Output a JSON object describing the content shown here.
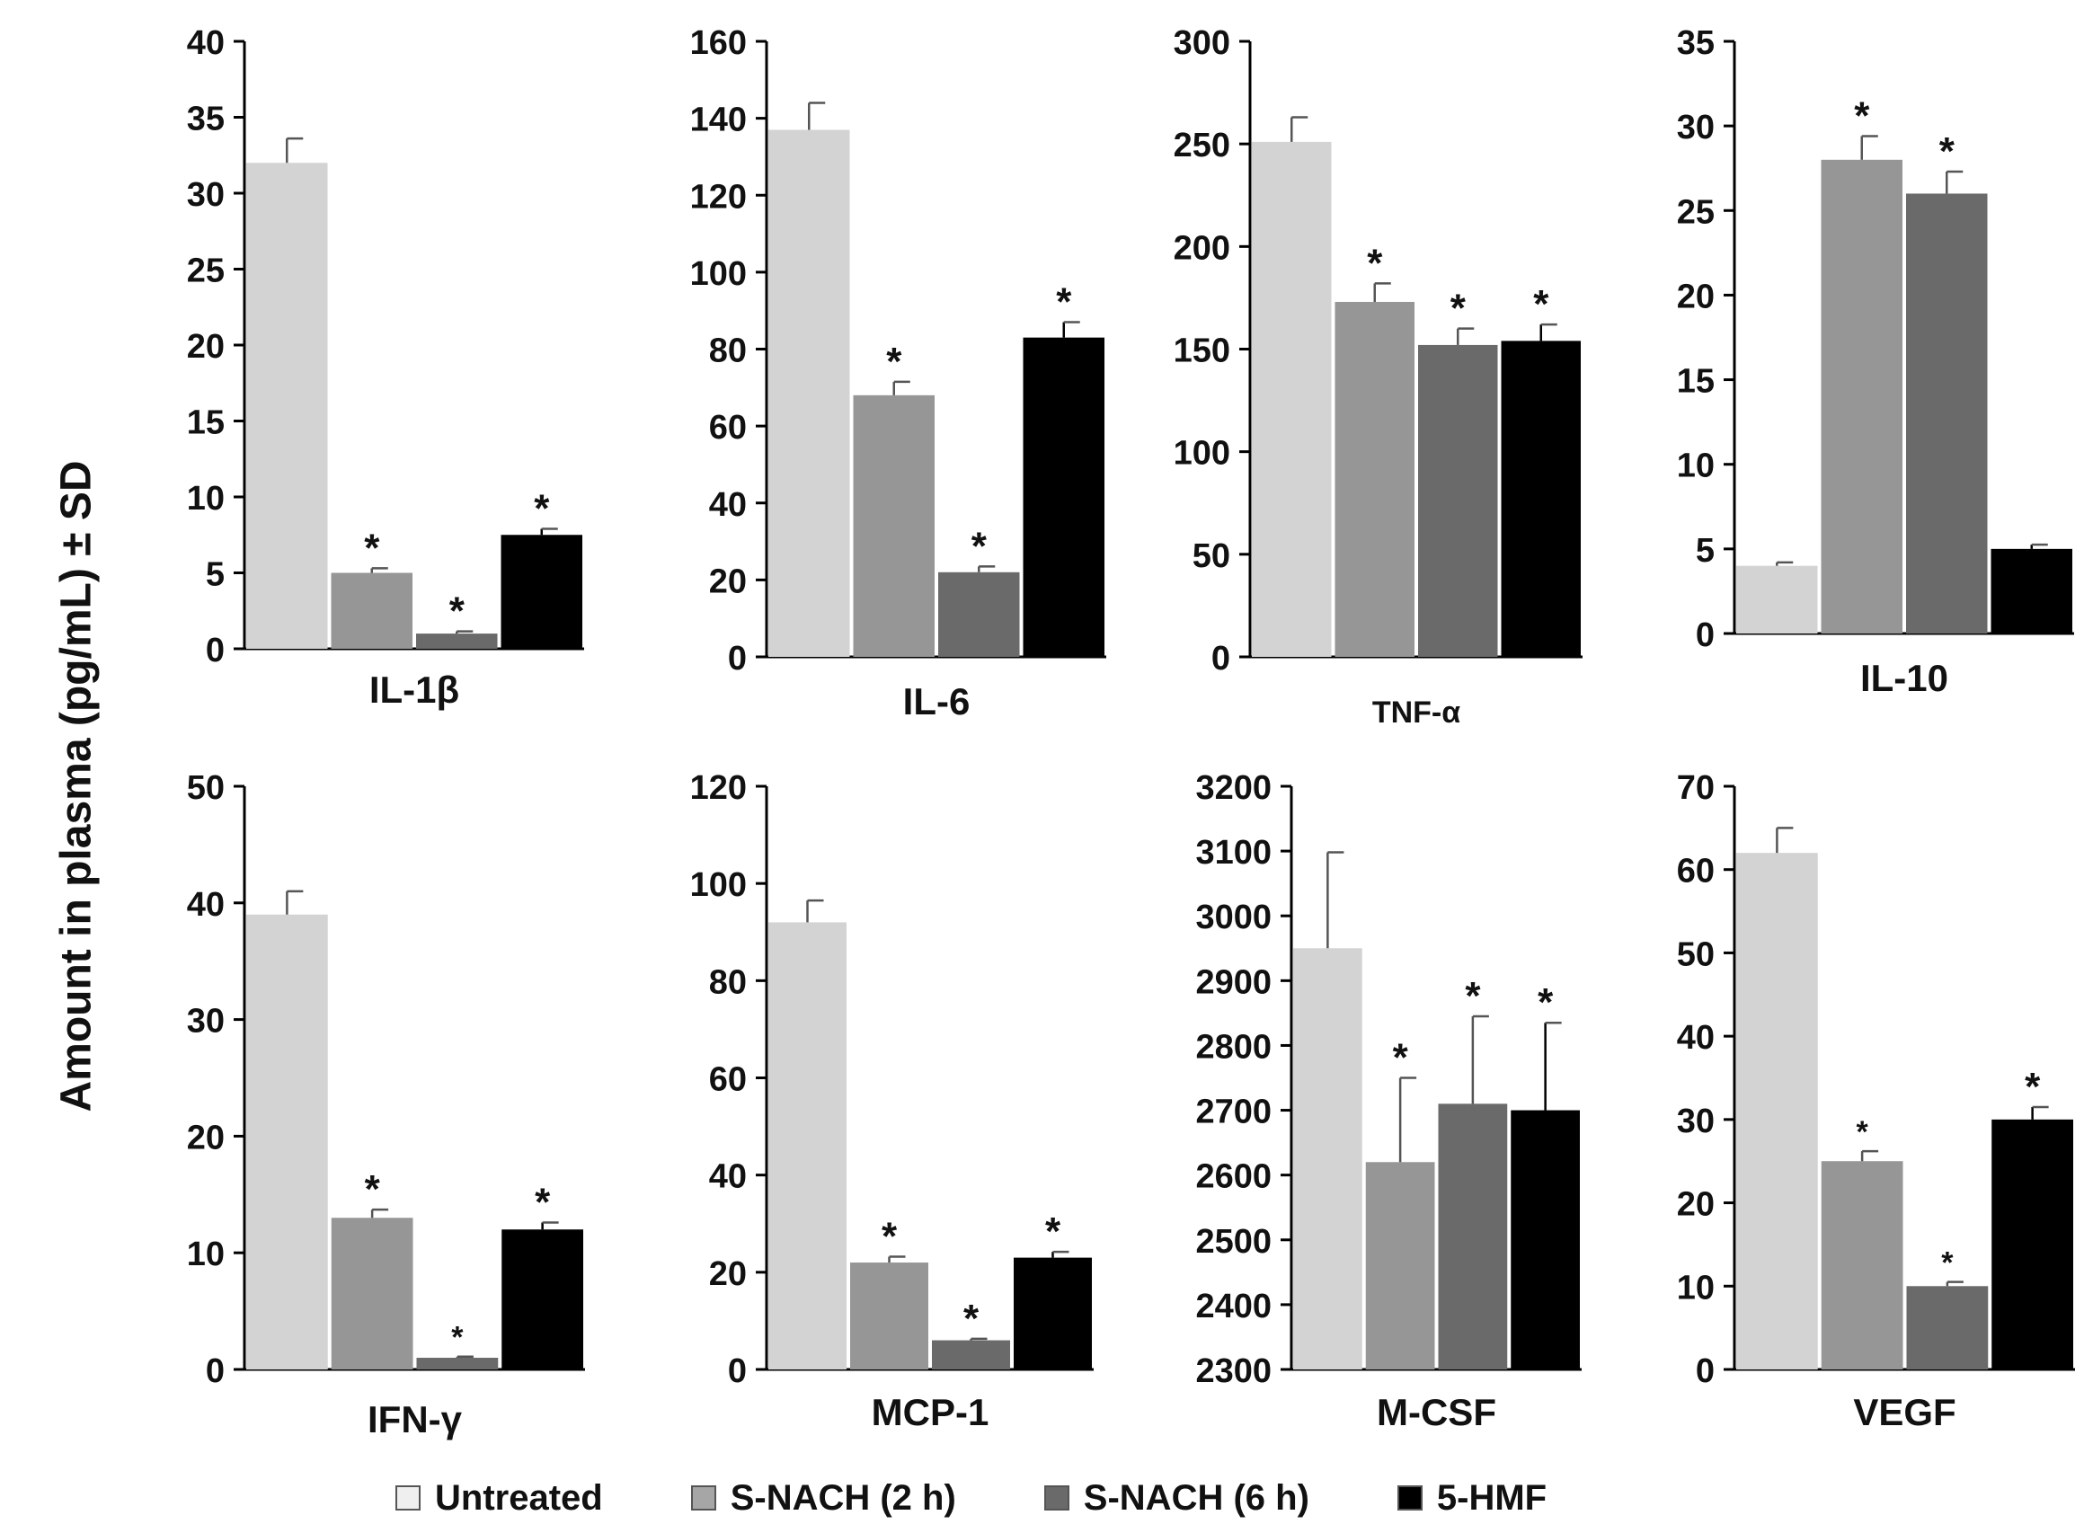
{
  "y_axis_title": "Amount in plasma (pg/mL) ± SD",
  "legend": [
    {
      "label": "Untreated",
      "color": "#d3d3d3"
    },
    {
      "label": "S-NACH (2 h)",
      "color": "#969696"
    },
    {
      "label": "S-NACH (6 h)",
      "color": "#6a6a6a"
    },
    {
      "label": "5-HMF",
      "color": "#000000"
    }
  ],
  "colors": {
    "untreated": "#d3d3d3",
    "snach2": "#969696",
    "snach6": "#6a6a6a",
    "hmf": "#000000"
  },
  "chart_data": [
    {
      "type": "bar",
      "title": "IL-1β",
      "ylim": [
        0,
        40
      ],
      "yticks": [
        0,
        5,
        10,
        15,
        20,
        25,
        30,
        35,
        40
      ],
      "categories": [
        "Untreated",
        "S-NACH (2 h)",
        "S-NACH (6 h)",
        "5-HMF"
      ],
      "values": [
        32,
        5,
        1,
        7.5
      ],
      "errors": [
        1.6,
        0.3,
        0.15,
        0.4
      ],
      "significant": [
        false,
        true,
        true,
        true
      ],
      "star_size": [
        "",
        "large",
        "large",
        "large"
      ]
    },
    {
      "type": "bar",
      "title": "IL-6",
      "ylim": [
        0,
        160
      ],
      "yticks": [
        0,
        20,
        40,
        60,
        80,
        100,
        120,
        140,
        160
      ],
      "categories": [
        "Untreated",
        "S-NACH (2 h)",
        "S-NACH (6 h)",
        "5-HMF"
      ],
      "values": [
        137,
        68,
        22,
        83
      ],
      "errors": [
        7,
        3.5,
        1.5,
        4
      ],
      "significant": [
        false,
        true,
        true,
        true
      ],
      "star_size": [
        "",
        "large",
        "large",
        "large"
      ]
    },
    {
      "type": "bar",
      "title": "TNF-α",
      "ylim": [
        0,
        300
      ],
      "yticks": [
        0,
        50,
        100,
        150,
        200,
        250,
        300
      ],
      "categories": [
        "Untreated",
        "S-NACH (2 h)",
        "S-NACH (6 h)",
        "5-HMF"
      ],
      "values": [
        251,
        173,
        152,
        154
      ],
      "errors": [
        12,
        9,
        8,
        8
      ],
      "significant": [
        false,
        true,
        true,
        true
      ],
      "star_size": [
        "",
        "large",
        "large",
        "large"
      ]
    },
    {
      "type": "bar",
      "title": "IL-10",
      "ylim": [
        0,
        35
      ],
      "yticks": [
        0,
        5,
        10,
        15,
        20,
        25,
        30,
        35
      ],
      "categories": [
        "Untreated",
        "S-NACH (2 h)",
        "S-NACH (6 h)",
        "5-HMF"
      ],
      "values": [
        4,
        28,
        26,
        5
      ],
      "errors": [
        0.2,
        1.4,
        1.3,
        0.25
      ],
      "significant": [
        false,
        true,
        true,
        false
      ],
      "star_size": [
        "",
        "large",
        "large",
        ""
      ]
    },
    {
      "type": "bar",
      "title": "IFN-γ",
      "ylim": [
        0,
        50
      ],
      "yticks": [
        0,
        10,
        20,
        30,
        40,
        50
      ],
      "categories": [
        "Untreated",
        "S-NACH (2 h)",
        "S-NACH (6 h)",
        "5-HMF"
      ],
      "values": [
        39,
        13,
        1,
        12
      ],
      "errors": [
        2,
        0.7,
        0.1,
        0.6
      ],
      "significant": [
        false,
        true,
        true,
        true
      ],
      "star_size": [
        "",
        "large",
        "small",
        "large"
      ]
    },
    {
      "type": "bar",
      "title": "MCP-1",
      "ylim": [
        0,
        120
      ],
      "yticks": [
        0,
        20,
        40,
        60,
        80,
        100,
        120
      ],
      "categories": [
        "Untreated",
        "S-NACH (2 h)",
        "S-NACH (6 h)",
        "5-HMF"
      ],
      "values": [
        92,
        22,
        6,
        23
      ],
      "errors": [
        4.5,
        1.2,
        0.3,
        1.2
      ],
      "significant": [
        false,
        true,
        true,
        true
      ],
      "star_size": [
        "",
        "large",
        "large",
        "large"
      ]
    },
    {
      "type": "bar",
      "title": "M-CSF",
      "ylim": [
        2300,
        3200
      ],
      "yticks": [
        2300,
        2400,
        2500,
        2600,
        2700,
        2800,
        2900,
        3000,
        3100,
        3200
      ],
      "categories": [
        "Untreated",
        "S-NACH (2 h)",
        "S-NACH (6 h)",
        "5-HMF"
      ],
      "values": [
        2950,
        2620,
        2710,
        2700
      ],
      "errors": [
        148,
        130,
        135,
        135
      ],
      "significant": [
        false,
        true,
        true,
        true
      ],
      "star_size": [
        "",
        "large",
        "large",
        "large"
      ]
    },
    {
      "type": "bar",
      "title": "VEGF",
      "ylim": [
        0,
        70
      ],
      "yticks": [
        0,
        10,
        20,
        30,
        40,
        50,
        60,
        70
      ],
      "categories": [
        "Untreated",
        "S-NACH (2 h)",
        "S-NACH (6 h)",
        "5-HMF"
      ],
      "values": [
        62,
        25,
        10,
        30
      ],
      "errors": [
        3,
        1.2,
        0.5,
        1.5
      ],
      "significant": [
        false,
        true,
        true,
        true
      ],
      "star_size": [
        "",
        "small",
        "small",
        "large"
      ]
    }
  ]
}
